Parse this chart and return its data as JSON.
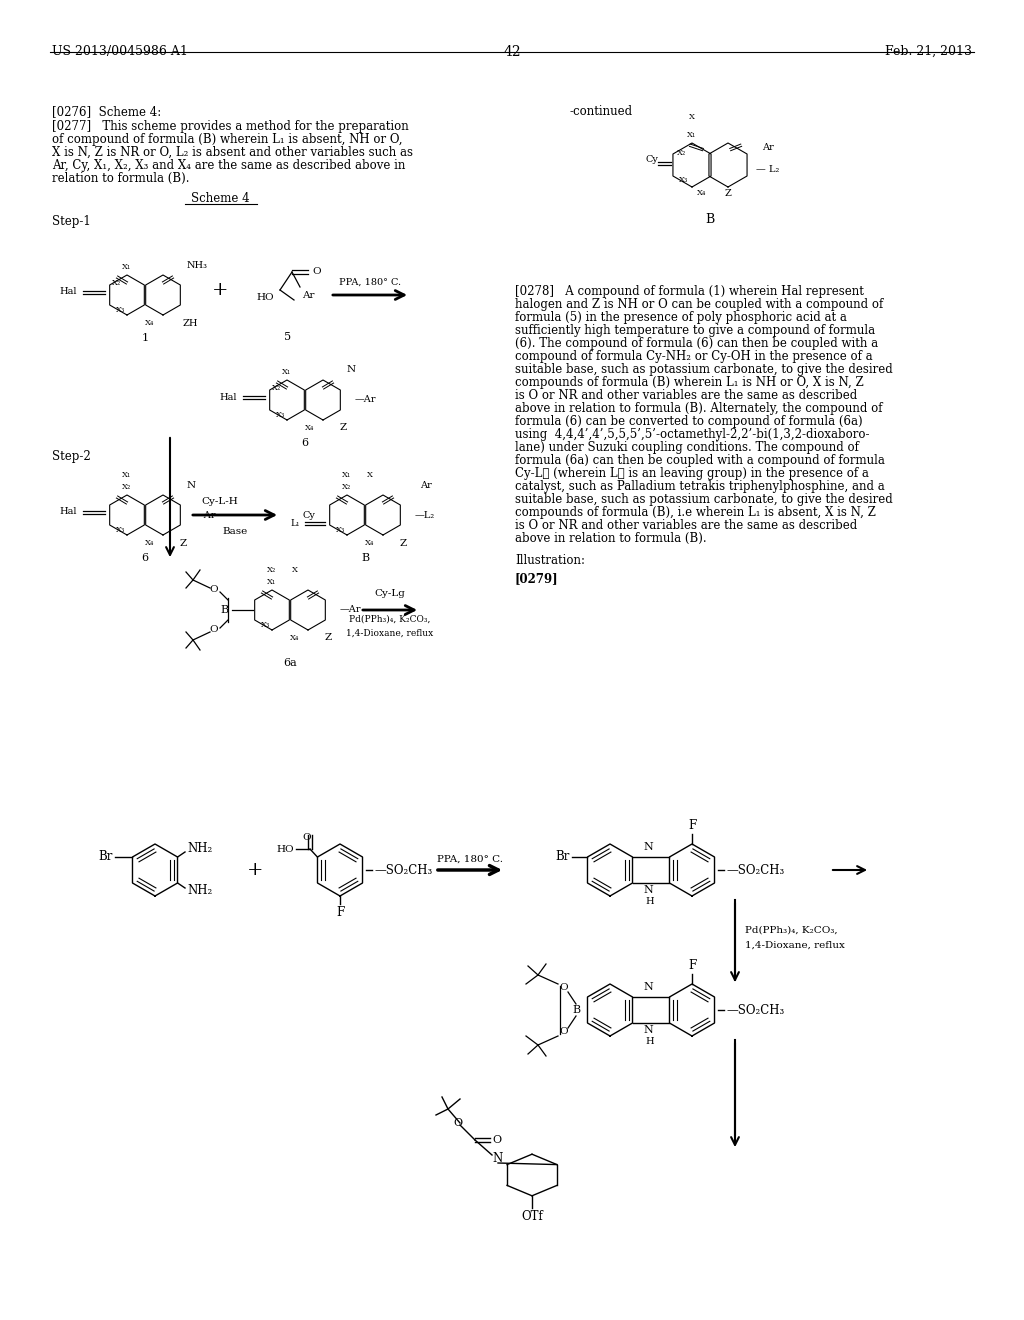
{
  "figsize": [
    10.24,
    13.2
  ],
  "dpi": 100,
  "bg": "#ffffff",
  "header_left": "US 2013/0045986 A1",
  "header_center": "42",
  "header_right": "Feb. 21, 2013"
}
